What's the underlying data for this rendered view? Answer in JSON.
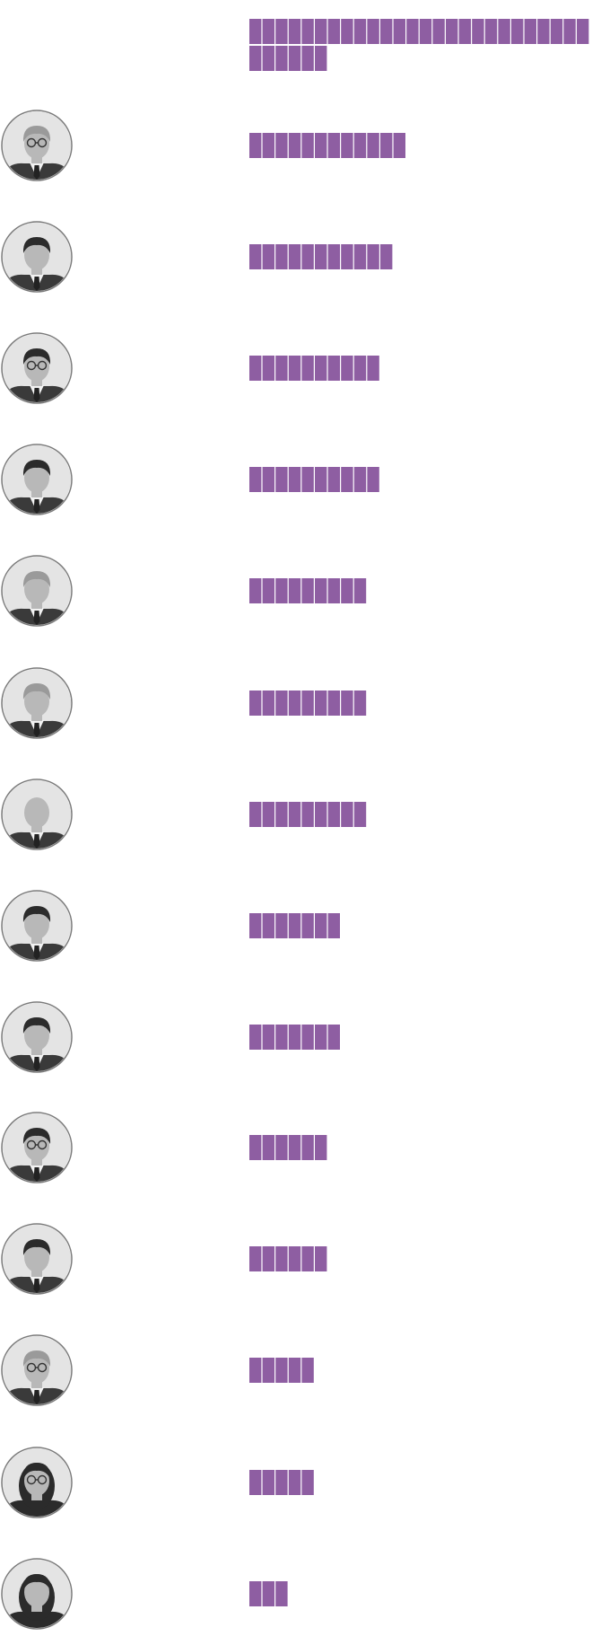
{
  "colors": {
    "unit": "#8e5ea2",
    "ring": "#7a7a7a",
    "background": "#ffffff"
  },
  "chart_data": {
    "type": "bar",
    "title": "",
    "xlabel": "",
    "ylabel": "",
    "grid": false,
    "legend": "none",
    "encoding": "unit-squares",
    "categories": [
      "",
      "",
      "",
      "",
      "",
      "",
      "",
      "",
      "",
      "",
      "",
      "",
      "",
      "",
      ""
    ],
    "has_portrait": [
      false,
      true,
      true,
      true,
      true,
      true,
      true,
      true,
      true,
      true,
      true,
      true,
      true,
      true,
      true
    ],
    "portrait_features": [
      "none",
      "light-hair-glasses",
      "dark-hair",
      "dark-hair-glasses",
      "dark-hair",
      "light-hair",
      "light-hair",
      "bald",
      "dark-hair",
      "dark-hair",
      "dark-hair-glasses",
      "dark-hair",
      "light-hair-glasses",
      "long-hair-glasses",
      "long-hair"
    ],
    "values": [
      32,
      12,
      11,
      10,
      10,
      9,
      9,
      9,
      7,
      7,
      6,
      6,
      5,
      5,
      3
    ]
  }
}
